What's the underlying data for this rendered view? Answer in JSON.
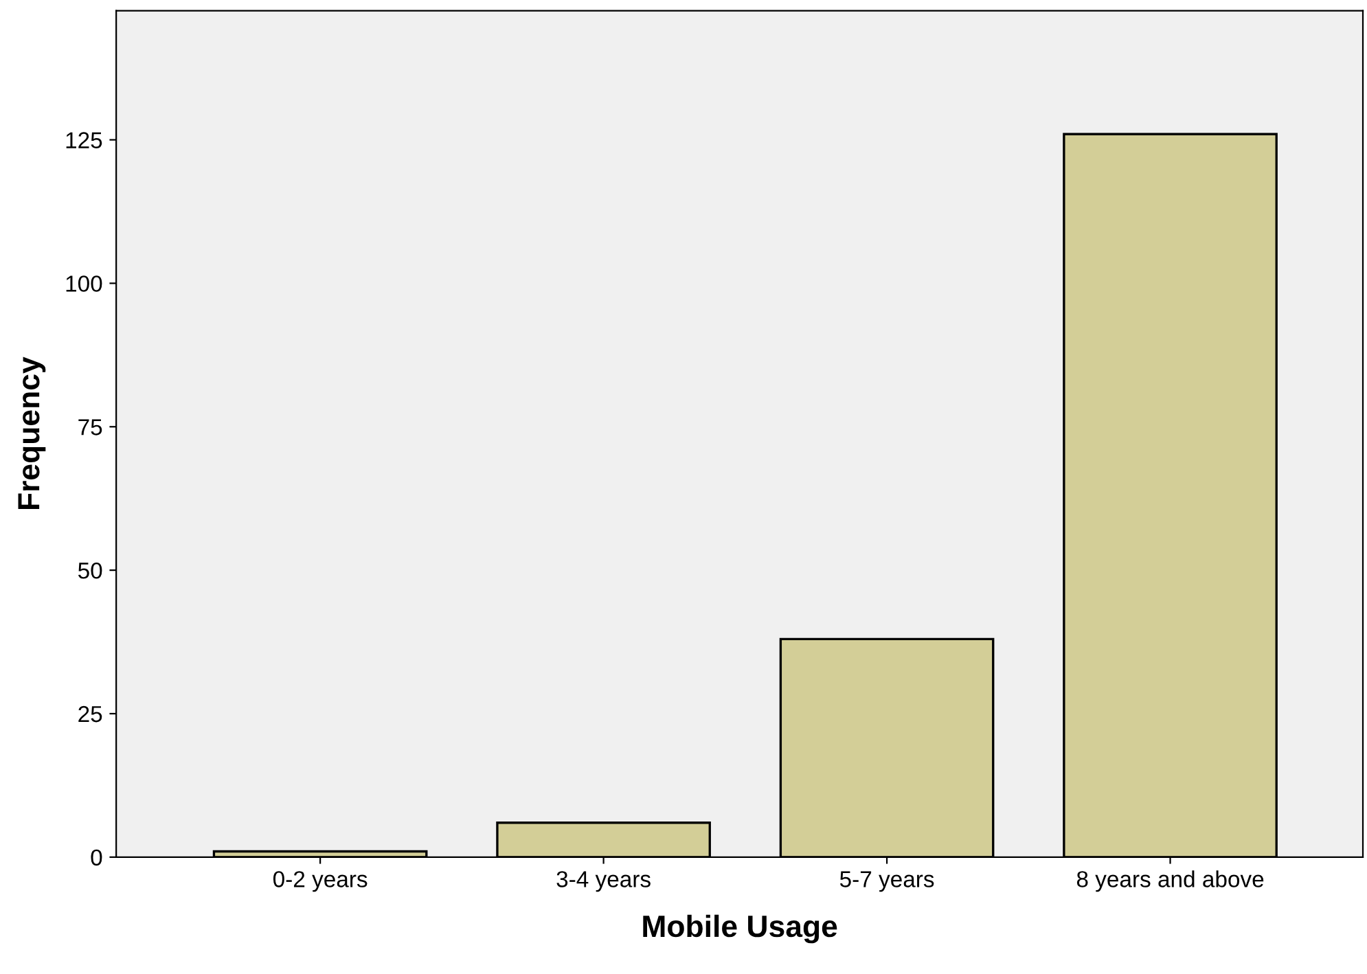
{
  "chart_data": {
    "type": "bar",
    "xlabel": "Mobile Usage",
    "ylabel": "Frequency",
    "categories": [
      "0-2 years",
      "3-4 years",
      "5-7 years",
      "8 years and above"
    ],
    "values": [
      1,
      6,
      38,
      126
    ],
    "color": "#d3ce97",
    "ylim": [
      0,
      147.5
    ],
    "yticks": [
      0,
      25,
      50,
      75,
      100,
      125
    ],
    "grid": false
  }
}
